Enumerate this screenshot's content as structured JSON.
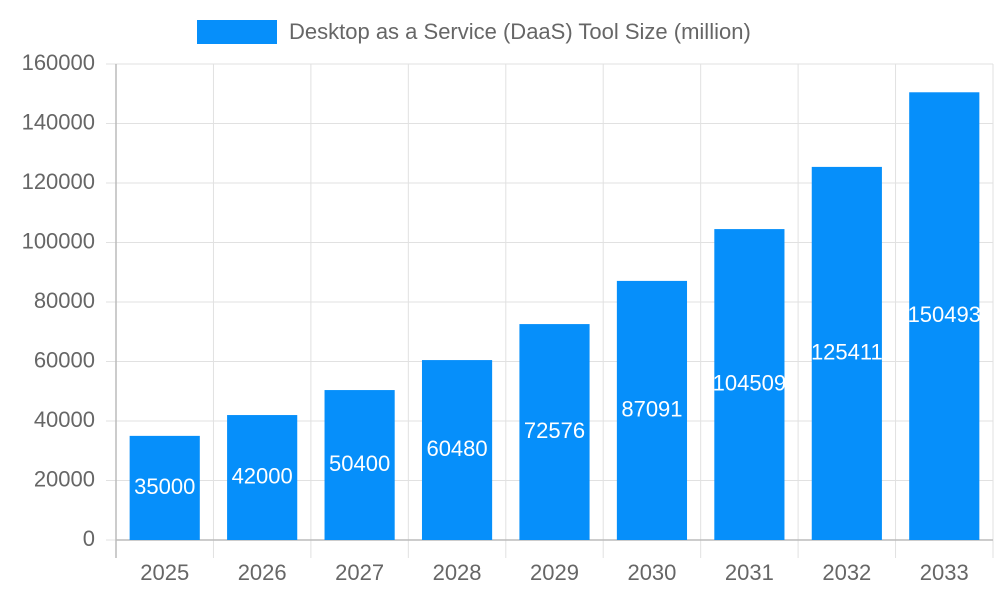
{
  "chart_data": {
    "type": "bar",
    "legend": "Desktop as a Service (DaaS) Tool Size (million)",
    "categories": [
      "2025",
      "2026",
      "2027",
      "2028",
      "2029",
      "2030",
      "2031",
      "2032",
      "2033"
    ],
    "values": [
      35000,
      42000,
      50400,
      60480,
      72576,
      87091,
      104509,
      125411,
      150493
    ],
    "color": "#068ffa",
    "ylim": [
      0,
      160000
    ],
    "yticks": [
      0,
      20000,
      40000,
      60000,
      80000,
      100000,
      120000,
      140000,
      160000
    ],
    "grid": true
  }
}
